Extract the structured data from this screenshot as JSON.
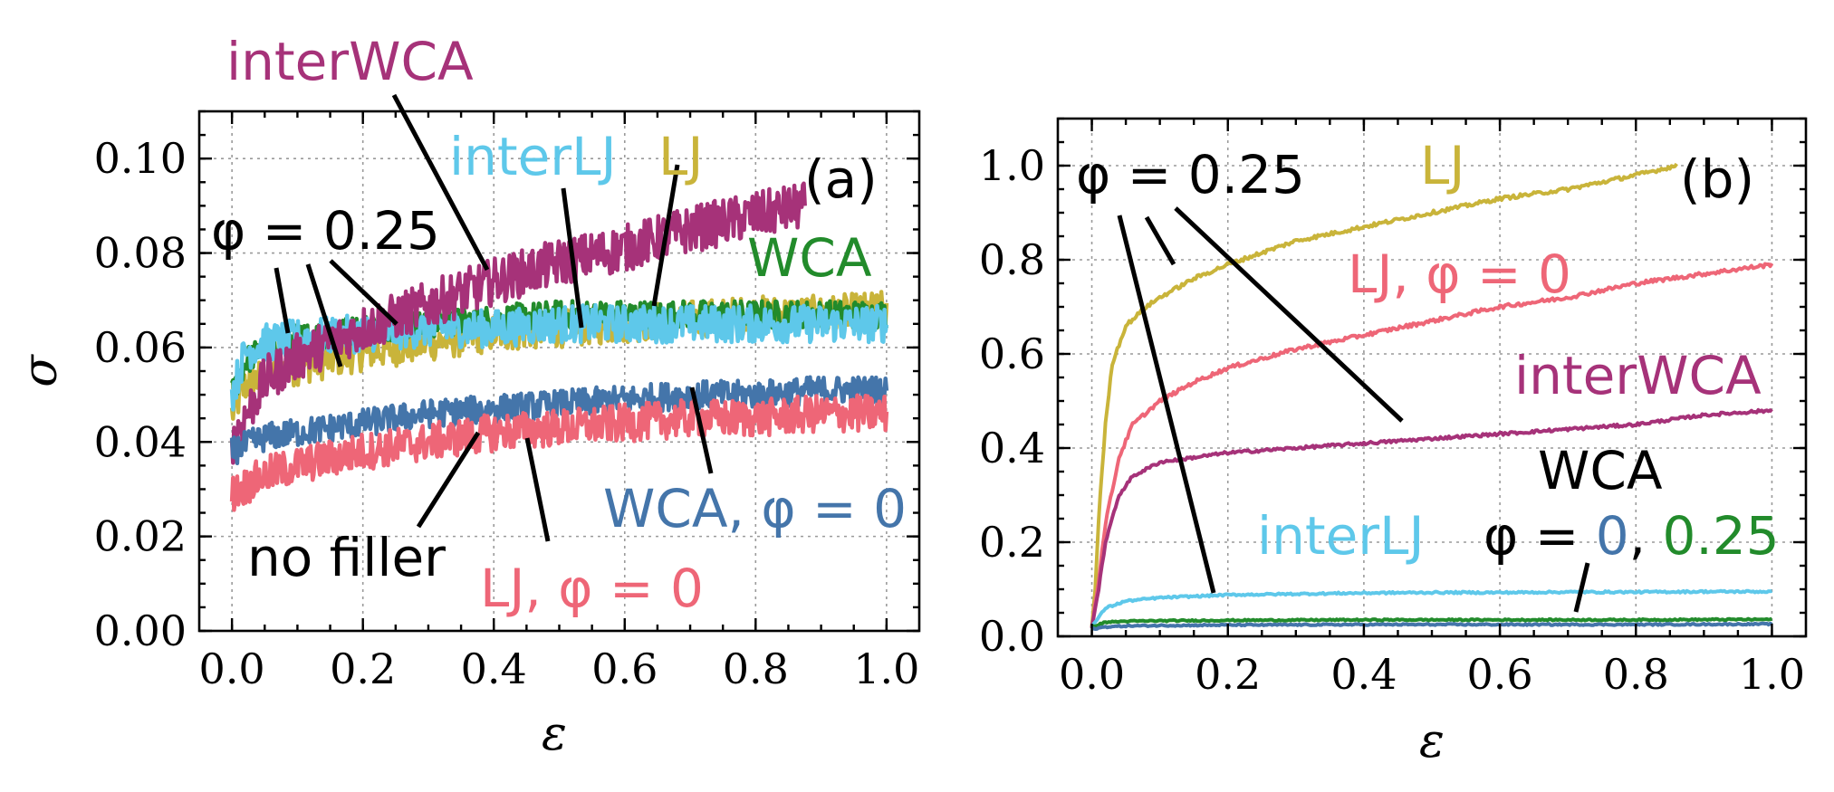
{
  "colors": {
    "LJ": "#c9b43a",
    "interWCA": "#a63279",
    "interLJ": "#5ec8ea",
    "WCA": "#228b2b",
    "WCA_phi0": "#4475aa",
    "LJ_phi0": "#ee6677",
    "text": "#000000"
  },
  "chart_data": [
    {
      "panel": "(a)",
      "type": "line",
      "xlabel": "ε",
      "ylabel": "σ",
      "xlim": [
        -0.05,
        1.05
      ],
      "ylim": [
        0.0,
        0.11
      ],
      "xticks": [
        "0.0",
        "0.2",
        "0.4",
        "0.6",
        "0.8",
        "1.0"
      ],
      "yticks": [
        "0.00",
        "0.02",
        "0.04",
        "0.06",
        "0.08",
        "0.10"
      ],
      "grid": true,
      "series": [
        {
          "name": "LJ",
          "x": [
            0,
            0.02,
            0.05,
            0.1,
            0.2,
            0.3,
            0.4,
            0.5,
            0.6,
            0.7,
            0.8,
            0.9,
            1.0
          ],
          "values": [
            0.046,
            0.052,
            0.054,
            0.056,
            0.059,
            0.061,
            0.063,
            0.064,
            0.065,
            0.066,
            0.067,
            0.067,
            0.068
          ],
          "noise": 0.004
        },
        {
          "name": "WCA",
          "x": [
            0,
            0.02,
            0.05,
            0.1,
            0.2,
            0.3,
            0.4,
            0.5,
            0.6,
            0.7,
            0.8,
            0.9,
            1.0
          ],
          "values": [
            0.05,
            0.057,
            0.06,
            0.062,
            0.064,
            0.065,
            0.066,
            0.067,
            0.067,
            0.067,
            0.067,
            0.067,
            0.067
          ],
          "noise": 0.003
        },
        {
          "name": "interLJ",
          "x": [
            0,
            0.02,
            0.05,
            0.1,
            0.2,
            0.3,
            0.4,
            0.5,
            0.6,
            0.7,
            0.8,
            0.9,
            1.0
          ],
          "values": [
            0.05,
            0.059,
            0.061,
            0.062,
            0.063,
            0.064,
            0.064,
            0.065,
            0.065,
            0.065,
            0.065,
            0.065,
            0.065
          ],
          "noise": 0.004
        },
        {
          "name": "interWCA",
          "x": [
            0,
            0.05,
            0.1,
            0.2,
            0.3,
            0.4,
            0.5,
            0.6,
            0.7,
            0.8,
            0.875
          ],
          "values": [
            0.04,
            0.053,
            0.058,
            0.064,
            0.069,
            0.074,
            0.078,
            0.081,
            0.085,
            0.088,
            0.09
          ],
          "noise": 0.005
        },
        {
          "name": "WCA, φ = 0",
          "x": [
            0,
            0.05,
            0.1,
            0.2,
            0.3,
            0.4,
            0.5,
            0.6,
            0.7,
            0.8,
            0.9,
            1.0
          ],
          "values": [
            0.038,
            0.041,
            0.042,
            0.044,
            0.046,
            0.047,
            0.048,
            0.049,
            0.05,
            0.05,
            0.051,
            0.051
          ],
          "noise": 0.003
        },
        {
          "name": "LJ, φ = 0",
          "x": [
            0,
            0.05,
            0.1,
            0.2,
            0.3,
            0.4,
            0.5,
            0.6,
            0.7,
            0.8,
            0.9,
            1.0
          ],
          "values": [
            0.029,
            0.033,
            0.035,
            0.038,
            0.04,
            0.042,
            0.043,
            0.044,
            0.045,
            0.045,
            0.046,
            0.046
          ],
          "noise": 0.004
        }
      ],
      "annotations": {
        "panel_label": "(a)",
        "interWCA": "interWCA",
        "interLJ": "interLJ",
        "LJ": "LJ",
        "WCA": "WCA",
        "phi_label": "φ = 0.25",
        "wca_phi0": "WCA, φ = 0",
        "lj_phi0": "LJ, φ = 0",
        "no_filler": "no filler"
      }
    },
    {
      "panel": "(b)",
      "type": "line",
      "xlabel": "ε",
      "ylabel": "",
      "xlim": [
        -0.05,
        1.05
      ],
      "ylim": [
        0.0,
        1.1
      ],
      "xticks": [
        "0.0",
        "0.2",
        "0.4",
        "0.6",
        "0.8",
        "1.0"
      ],
      "yticks": [
        "0.0",
        "0.2",
        "0.4",
        "0.6",
        "0.8",
        "1.0"
      ],
      "grid": true,
      "series": [
        {
          "name": "LJ",
          "x": [
            0,
            0.005,
            0.01,
            0.02,
            0.03,
            0.05,
            0.08,
            0.1,
            0.15,
            0.2,
            0.3,
            0.4,
            0.5,
            0.6,
            0.7,
            0.8,
            0.86
          ],
          "values": [
            0.02,
            0.1,
            0.25,
            0.45,
            0.58,
            0.66,
            0.7,
            0.72,
            0.76,
            0.79,
            0.84,
            0.87,
            0.9,
            0.93,
            0.95,
            0.98,
            1.0
          ],
          "noise": 0.004
        },
        {
          "name": "LJ, φ = 0",
          "x": [
            0,
            0.01,
            0.02,
            0.04,
            0.06,
            0.1,
            0.15,
            0.2,
            0.3,
            0.4,
            0.5,
            0.6,
            0.7,
            0.8,
            0.9,
            1.0
          ],
          "values": [
            0.02,
            0.12,
            0.24,
            0.38,
            0.45,
            0.5,
            0.54,
            0.57,
            0.61,
            0.64,
            0.67,
            0.7,
            0.72,
            0.75,
            0.77,
            0.79
          ],
          "noise": 0.004
        },
        {
          "name": "interWCA",
          "x": [
            0,
            0.01,
            0.02,
            0.04,
            0.06,
            0.1,
            0.15,
            0.2,
            0.3,
            0.4,
            0.5,
            0.6,
            0.7,
            0.8,
            0.9,
            1.0
          ],
          "values": [
            0.02,
            0.1,
            0.2,
            0.3,
            0.34,
            0.37,
            0.38,
            0.39,
            0.4,
            0.41,
            0.42,
            0.43,
            0.44,
            0.45,
            0.47,
            0.48
          ],
          "noise": 0.003
        },
        {
          "name": "interLJ",
          "x": [
            0,
            0.02,
            0.05,
            0.1,
            0.2,
            0.3,
            0.4,
            0.5,
            0.6,
            0.7,
            0.8,
            0.9,
            1.0
          ],
          "values": [
            0.02,
            0.06,
            0.075,
            0.082,
            0.088,
            0.09,
            0.092,
            0.093,
            0.093,
            0.094,
            0.094,
            0.095,
            0.095
          ],
          "noise": 0.002
        },
        {
          "name": "WCA",
          "x": [
            0,
            0.02,
            0.05,
            0.1,
            0.2,
            0.4,
            0.6,
            0.8,
            1.0
          ],
          "values": [
            0.02,
            0.03,
            0.032,
            0.033,
            0.034,
            0.035,
            0.035,
            0.035,
            0.036
          ],
          "noise": 0.0015
        },
        {
          "name": "WCA, φ = 0",
          "x": [
            0,
            0.02,
            0.05,
            0.1,
            0.2,
            0.4,
            0.6,
            0.8,
            1.0
          ],
          "values": [
            0.015,
            0.02,
            0.022,
            0.023,
            0.024,
            0.025,
            0.025,
            0.025,
            0.026
          ],
          "noise": 0.0015
        }
      ],
      "annotations": {
        "panel_label": "(b)",
        "LJ": "LJ",
        "phi_label": "φ = 0.25",
        "lj_phi0": "LJ, φ = 0",
        "interWCA": "interWCA",
        "WCA": "WCA",
        "interLJ": "interLJ",
        "phi_prefix": "φ = ",
        "phi_zero": "0",
        "phi_sep": ", ",
        "phi_quarter": "0.25"
      }
    }
  ]
}
